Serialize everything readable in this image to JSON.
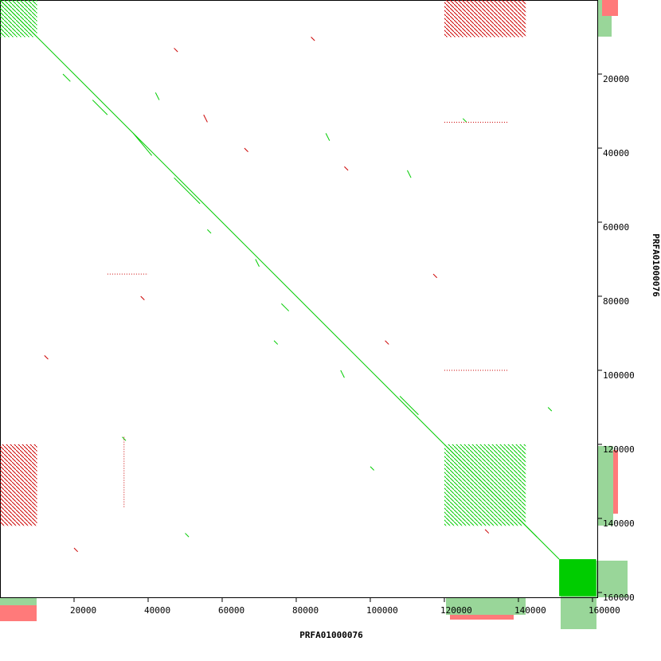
{
  "chart_data": {
    "type": "dotplot",
    "x_label": "PRFA01000076",
    "y_label": "PRFA01000076",
    "xlim": [
      0,
      161300
    ],
    "ylim": [
      0,
      161300
    ],
    "xticks": [
      20000,
      40000,
      60000,
      80000,
      100000,
      120000,
      140000,
      160000
    ],
    "yticks": [
      20000,
      40000,
      60000,
      80000,
      100000,
      120000,
      140000,
      160000
    ],
    "series": [
      {
        "color": "#00cc00",
        "segments": [
          [
            0,
            0,
            151000,
            151000
          ],
          [
            47000,
            48000,
            54000,
            55000
          ],
          [
            36000,
            36000,
            41000,
            42000
          ],
          [
            25000,
            27000,
            29000,
            31000
          ],
          [
            108000,
            107000,
            113000,
            112000
          ],
          [
            140000,
            140000,
            145000,
            145000
          ],
          [
            17000,
            20000,
            19000,
            22000
          ],
          [
            56000,
            62000,
            57000,
            63000
          ],
          [
            76000,
            82000,
            78000,
            84000
          ],
          [
            92000,
            100000,
            93000,
            102000
          ],
          [
            88000,
            36000,
            89000,
            38000
          ],
          [
            69000,
            70000,
            70000,
            72000
          ],
          [
            42000,
            25000,
            43000,
            27000
          ],
          [
            110000,
            46000,
            111000,
            48000
          ],
          [
            33000,
            118000,
            34000,
            119000
          ],
          [
            74000,
            92000,
            75000,
            93000
          ],
          [
            50000,
            144000,
            51000,
            145000
          ],
          [
            125000,
            32000,
            126000,
            33000
          ],
          [
            148000,
            110000,
            149000,
            111000
          ],
          [
            100000,
            126000,
            101000,
            127000
          ]
        ],
        "hatched_blocks": [
          [
            0,
            0,
            10000,
            10000
          ],
          [
            120000,
            120000,
            142000,
            142000
          ]
        ],
        "solid_blocks": [
          [
            151000,
            151000,
            161000,
            161000
          ]
        ]
      },
      {
        "color": "#cc0000",
        "segments": [
          [
            120000,
            33000,
            137000,
            33000
          ],
          [
            120000,
            100000,
            137000,
            100000
          ],
          [
            33500,
            118000,
            33500,
            137000
          ],
          [
            29000,
            74000,
            40000,
            74000
          ],
          [
            117000,
            74000,
            118000,
            75000
          ],
          [
            47000,
            13000,
            48000,
            14000
          ],
          [
            12000,
            96000,
            13000,
            97000
          ],
          [
            66000,
            40000,
            67000,
            41000
          ],
          [
            93000,
            45000,
            94000,
            46000
          ],
          [
            55000,
            31000,
            56000,
            33000
          ],
          [
            20000,
            148000,
            21000,
            149000
          ],
          [
            84000,
            10000,
            85000,
            11000
          ],
          [
            104000,
            92000,
            105000,
            93000
          ],
          [
            38000,
            80000,
            39000,
            81000
          ],
          [
            131000,
            143000,
            132000,
            144000
          ]
        ],
        "hatched_blocks": [
          [
            120000,
            0,
            142000,
            10000
          ],
          [
            0,
            120000,
            10000,
            142000
          ]
        ],
        "solid_blocks": []
      }
    ]
  }
}
